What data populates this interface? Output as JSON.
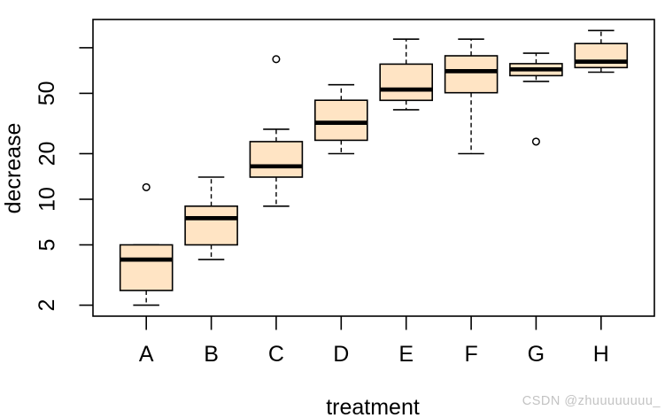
{
  "watermark": {
    "text": "CSDN @zhuuuuuuuu_",
    "color": "#c3c3c3"
  },
  "chart_data": {
    "type": "boxplot",
    "title": "",
    "xlabel": "treatment",
    "ylabel": "decrease",
    "log_y": true,
    "grid": false,
    "legend": "none",
    "background": "#ffffff",
    "box_fill": "#ffe4c4",
    "line_color": "#000000",
    "xlim": [
      0.18,
      8.82
    ],
    "ylim_log10": [
      0.2285,
      2.1864
    ],
    "y_ticks": [
      {
        "value": 2,
        "label": "2"
      },
      {
        "value": 5,
        "label": "5"
      },
      {
        "value": 10,
        "label": "10"
      },
      {
        "value": 20,
        "label": "20"
      },
      {
        "value": 50,
        "label": "50"
      },
      {
        "value": 100,
        "label": ""
      }
    ],
    "categories": [
      "A",
      "B",
      "C",
      "D",
      "E",
      "F",
      "G",
      "H"
    ],
    "series": [
      {
        "label": "A",
        "whisker_low": 2,
        "q1": 2.5,
        "median": 4,
        "q3": 5,
        "whisker_high": 5,
        "outliers": [
          12
        ]
      },
      {
        "label": "B",
        "whisker_low": 4,
        "q1": 5,
        "median": 7.5,
        "q3": 9,
        "whisker_high": 14,
        "outliers": []
      },
      {
        "label": "C",
        "whisker_low": 9,
        "q1": 14,
        "median": 16.5,
        "q3": 24,
        "whisker_high": 29,
        "outliers": [
          84
        ]
      },
      {
        "label": "D",
        "whisker_low": 20,
        "q1": 24.5,
        "median": 32,
        "q3": 45,
        "whisker_high": 57,
        "outliers": []
      },
      {
        "label": "E",
        "whisker_low": 39,
        "q1": 45,
        "median": 53,
        "q3": 78,
        "whisker_high": 114,
        "outliers": []
      },
      {
        "label": "F",
        "whisker_low": 20,
        "q1": 50.5,
        "median": 70,
        "q3": 88.5,
        "whisker_high": 114,
        "outliers": []
      },
      {
        "label": "G",
        "whisker_low": 60,
        "q1": 65.5,
        "median": 72,
        "q3": 78.5,
        "whisker_high": 92,
        "outliers": [
          24
        ]
      },
      {
        "label": "H",
        "whisker_low": 69,
        "q1": 74,
        "median": 81,
        "q3": 106.5,
        "whisker_high": 130,
        "outliers": []
      }
    ]
  }
}
